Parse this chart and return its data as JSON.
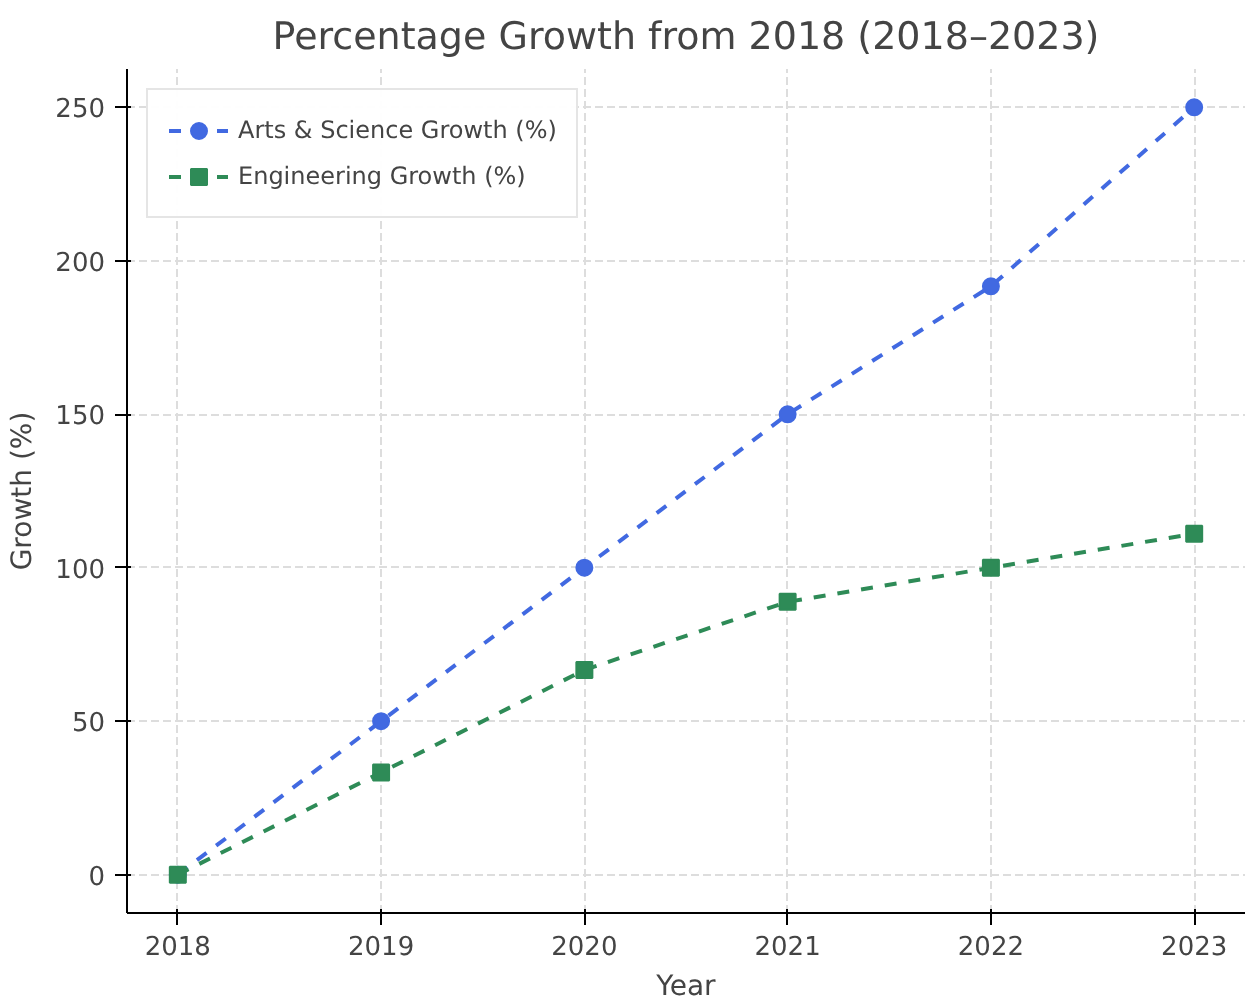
{
  "chart_data": {
    "type": "line",
    "title": "Percentage Growth from 2018 (2018–2023)",
    "xlabel": "Year",
    "ylabel": "Growth (%)",
    "x": [
      2018,
      2019,
      2020,
      2021,
      2022,
      2023
    ],
    "series": [
      {
        "name": "Arts & Science Growth (%)",
        "color": "#4169e1",
        "marker": "circle",
        "values": [
          0,
          50,
          100,
          150,
          191.7,
          250
        ]
      },
      {
        "name": "Engineering Growth (%)",
        "color": "#2e8b57",
        "marker": "square",
        "values": [
          0,
          33.3,
          66.7,
          88.9,
          100,
          111.1
        ]
      }
    ],
    "xlim": [
      2017.75,
      2023.25
    ],
    "ylim": [
      -12.5,
      262.5
    ],
    "xticks": [
      2018,
      2019,
      2020,
      2021,
      2022,
      2023
    ],
    "yticks": [
      0,
      50,
      100,
      150,
      200,
      250
    ],
    "grid": true,
    "legend": "top left",
    "line_style": "dashed"
  }
}
